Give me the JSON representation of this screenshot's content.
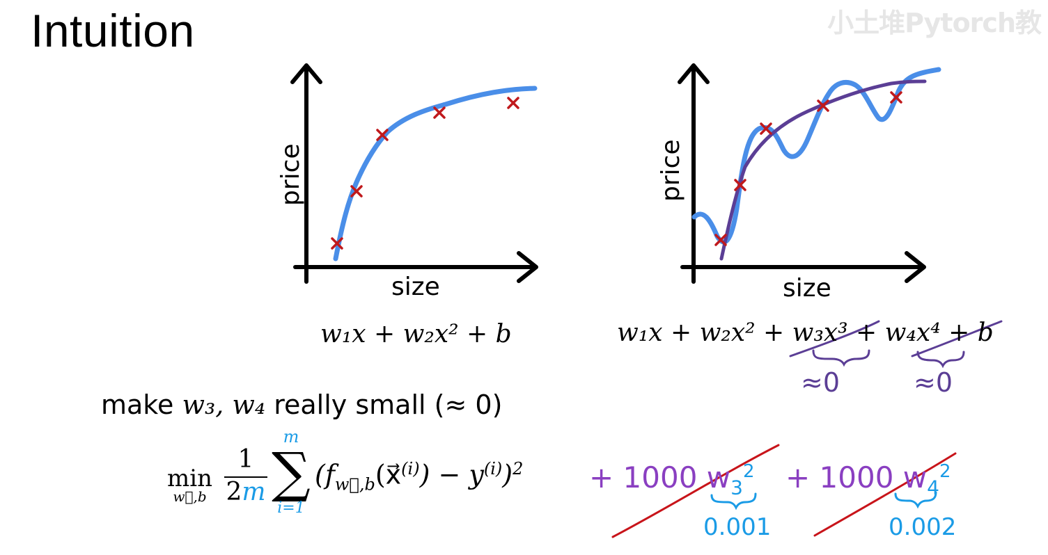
{
  "slide": {
    "title": "Intuition",
    "watermark": "小土堆Pytorch教"
  },
  "left_plot": {
    "y_label": "price",
    "x_label": "size",
    "equation": "w₁x + w₂x² + b"
  },
  "right_plot": {
    "y_label": "price",
    "x_label": "size",
    "equation": "w₁x + w₂x² + w₃x³ + w₄x⁴ + b",
    "note_w3": "≈0",
    "note_w4": "≈0"
  },
  "statement": {
    "prefix": "make",
    "vars": "w₃, w₄",
    "suffix": "really small (≈ 0)"
  },
  "cost": {
    "min": "min",
    "min_sub": "w⃗,b",
    "frac_num": "1",
    "frac_den_2": "2",
    "frac_den_m": "m",
    "sum_top": "m",
    "sum_bottom": "i=1",
    "body": "(f",
    "body_sub": "w⃗,b",
    "body_arg": "(x⃗",
    "body_arg_sup": "(i)",
    "body_minus": ") − y",
    "body_y_sup": "(i)",
    "body_close": ")",
    "body_sq": "2",
    "penalty1": "+ 1000 w",
    "penalty1_sub": "3",
    "penalty1_sup": "2",
    "penalty1_value": "0.001",
    "penalty2": "+ 1000 w",
    "penalty2_sub": "4",
    "penalty2_sup": "2",
    "penalty2_value": "0.002"
  },
  "colors": {
    "blue_curve": "#4a8ee8",
    "purple_curve": "#5b3e95",
    "red_marker": "#c0191c",
    "handwriting_purple": "#8a3fc1",
    "handwriting_blue": "#1a9be6",
    "strike_red": "#c8141a"
  }
}
